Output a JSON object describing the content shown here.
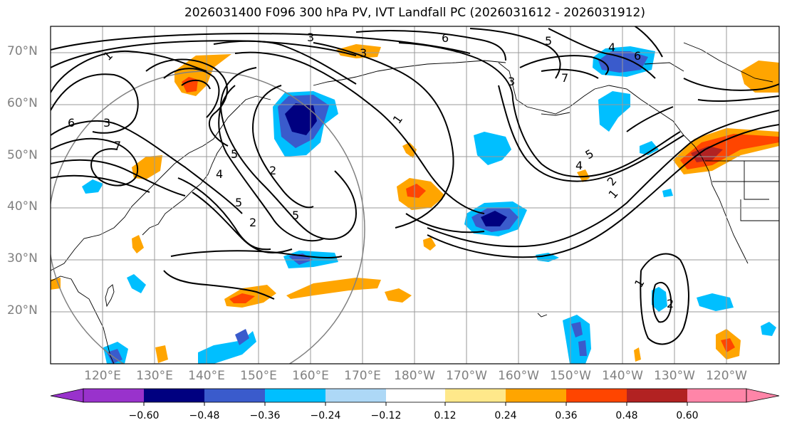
{
  "title": "2026031400 F096 300 hPa PV, IVT Landfall PC (2026031612 - 2026031912)",
  "lat_labels": [
    "70°N",
    "60°N",
    "50°N",
    "40°N",
    "30°N",
    "20°N"
  ],
  "lon_labels": [
    "120°E",
    "130°E",
    "140°E",
    "150°E",
    "160°E",
    "170°E",
    "180°W",
    "170°W",
    "160°W",
    "150°W",
    "140°W",
    "130°W",
    "120°W"
  ],
  "colorbar": {
    "ticks": [
      "−0.60",
      "−0.48",
      "−0.36",
      "−0.24",
      "−0.12",
      "0.12",
      "0.24",
      "0.36",
      "0.48",
      "0.60"
    ],
    "colors": [
      "#9932CC",
      "#000080",
      "#3A5BCC",
      "#00BFFF",
      "#ADD8F6",
      "#FFFFFF",
      "#FFE88A",
      "#FFA500",
      "#FF4500",
      "#B22222",
      "#FF85A8"
    ]
  },
  "contour_labels": [
    "1",
    "3",
    "6",
    "5",
    "7",
    "4",
    "1",
    "5",
    "2",
    "3",
    "3",
    "5",
    "2",
    "7",
    "6",
    "3",
    "5",
    "4",
    "2",
    "1",
    "1",
    "2",
    "4",
    "6",
    "5"
  ]
}
